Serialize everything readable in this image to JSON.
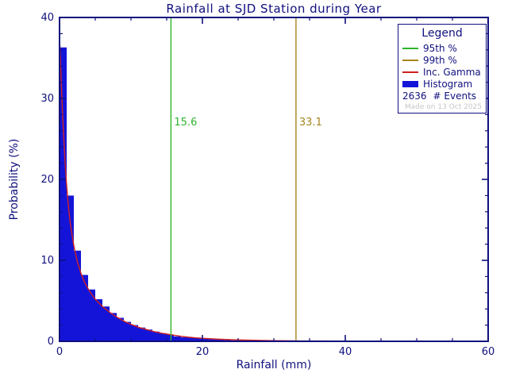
{
  "chart_data": {
    "type": "bar",
    "title": "Rainfall at SJD Station during Year",
    "xlabel": "Rainfall (mm)",
    "ylabel": "Probability (%)",
    "xlim": [
      0,
      60
    ],
    "ylim": [
      0,
      40
    ],
    "x_major_ticks": [
      0,
      20,
      40,
      60
    ],
    "x_minor_step": 5,
    "y_major_ticks": [
      0,
      10,
      20,
      30,
      40
    ],
    "y_minor_step": 2,
    "bin_width": 1,
    "bar_values": [
      36.3,
      18.0,
      11.2,
      8.2,
      6.4,
      5.2,
      4.3,
      3.5,
      2.9,
      2.4,
      2.0,
      1.7,
      1.45,
      1.2,
      1.0,
      0.85,
      0.6,
      0.5,
      0.45,
      0.4,
      0.3,
      0.25,
      0.2,
      0.16,
      0.13,
      0.11,
      0.1,
      0.09,
      0.08,
      0.07,
      0.06,
      0.05,
      0.05,
      0.04,
      0.04,
      0.03,
      0.02,
      0.02,
      0.02,
      0.01,
      0.01,
      0.01,
      0.01,
      0.01,
      0.01,
      0.01,
      0.0,
      0.01,
      0.0,
      0.0,
      0.01,
      0.0,
      0.0,
      0.0,
      0.01,
      0.0,
      0.0,
      0.0,
      0.0,
      0.0
    ],
    "gamma_curve": [
      [
        0.05,
        36.5
      ],
      [
        0.2,
        33.0
      ],
      [
        0.4,
        28.5
      ],
      [
        0.6,
        25.0
      ],
      [
        0.8,
        21.8
      ],
      [
        1,
        19.2
      ],
      [
        1.25,
        16.6
      ],
      [
        1.5,
        14.6
      ],
      [
        2,
        11.8
      ],
      [
        2.5,
        9.8
      ],
      [
        3,
        8.4
      ],
      [
        3.5,
        7.3
      ],
      [
        4,
        6.5
      ],
      [
        4.5,
        5.8
      ],
      [
        5,
        5.2
      ],
      [
        6,
        4.3
      ],
      [
        7,
        3.6
      ],
      [
        8,
        3.0
      ],
      [
        9,
        2.5
      ],
      [
        10,
        2.1
      ],
      [
        11,
        1.75
      ],
      [
        12,
        1.5
      ],
      [
        13,
        1.25
      ],
      [
        14,
        1.05
      ],
      [
        15,
        0.9
      ],
      [
        16,
        0.75
      ],
      [
        17,
        0.62
      ],
      [
        18,
        0.52
      ],
      [
        19,
        0.44
      ],
      [
        20,
        0.37
      ],
      [
        22,
        0.27
      ],
      [
        24,
        0.2
      ],
      [
        26,
        0.15
      ],
      [
        28,
        0.11
      ],
      [
        30,
        0.08
      ],
      [
        33,
        0.05
      ],
      [
        36,
        0.04
      ],
      [
        40,
        0.025
      ],
      [
        45,
        0.015
      ],
      [
        50,
        0.01
      ],
      [
        55,
        0.007
      ],
      [
        60,
        0.005
      ]
    ],
    "lines": {
      "p95": {
        "x": 15.6,
        "label": "15.6",
        "color": "#2db52d"
      },
      "p99": {
        "x": 33.1,
        "label": "33.1",
        "color": "#a5851e"
      }
    },
    "colors": {
      "axis": "#10107e",
      "histogram": "#1414d9",
      "gamma": "#d02020"
    }
  },
  "legend": {
    "title": "Legend",
    "items": [
      {
        "label": "95th %",
        "swatch": "line",
        "color": "#2db52d"
      },
      {
        "label": "99th %",
        "swatch": "line",
        "color": "#a5851e"
      },
      {
        "label": "Inc. Gamma",
        "swatch": "line",
        "color": "#d02020"
      },
      {
        "label": "Histogram",
        "swatch": "bar",
        "color": "#1414d9"
      }
    ],
    "events_count": "2636",
    "events_label": "# Events",
    "made_on": "Made on 13 Oct 2025"
  }
}
